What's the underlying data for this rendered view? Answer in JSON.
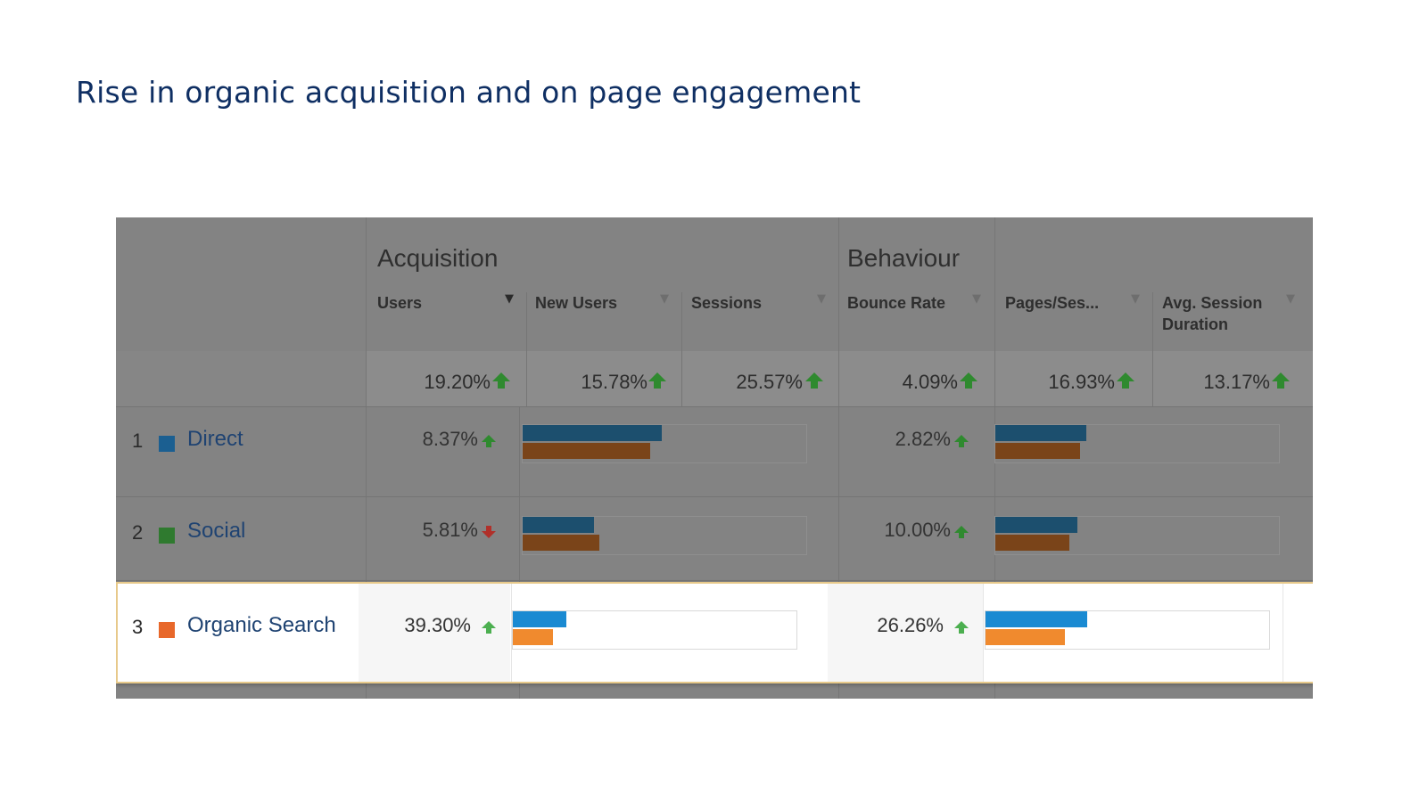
{
  "title": "Rise in organic acquisition and on page engagement",
  "groups": {
    "acquisition": "Acquisition",
    "behaviour": "Behaviour"
  },
  "columns": {
    "users": "Users",
    "new_users": "New Users",
    "sessions": "Sessions",
    "bounce_rate": "Bounce Rate",
    "pages_session": "Pages/Ses...",
    "avg_duration_1": "Avg. Session",
    "avg_duration_2": "Duration"
  },
  "totals": {
    "users": "19.20%",
    "new_users": "15.78%",
    "sessions": "25.57%",
    "bounce_rate": "4.09%",
    "pages_session": "16.93%",
    "avg_duration": "13.17%"
  },
  "rows": [
    {
      "num": "1",
      "label": "Direct",
      "swatch": "#1b5f91",
      "users_change": "8.37%",
      "users_dir": "up",
      "bounce_change": "2.82%",
      "bounce_dir": "up",
      "users_bar_current": 0.49,
      "users_bar_previous": 0.45,
      "bounce_bar_current": 0.32,
      "bounce_bar_previous": 0.3
    },
    {
      "num": "2",
      "label": "Social",
      "swatch": "#2f7a2f",
      "users_change": "5.81%",
      "users_dir": "down",
      "bounce_change": "10.00%",
      "bounce_dir": "up",
      "users_bar_current": 0.25,
      "users_bar_previous": 0.27,
      "bounce_bar_current": 0.29,
      "bounce_bar_previous": 0.26
    },
    {
      "num": "3",
      "label": "Organic Search",
      "swatch": "#e8682a",
      "users_change": "39.30%",
      "users_dir": "up",
      "bounce_change": "26.26%",
      "bounce_dir": "up",
      "users_bar_current": 0.19,
      "users_bar_previous": 0.14,
      "bounce_bar_current": 0.36,
      "bounce_bar_previous": 0.28
    }
  ],
  "colors": {
    "title": "#0f2f63",
    "bar_current_dim": "#1c4f6e",
    "bar_previous_dim": "#7a4419",
    "bar_current": "#1a8ad2",
    "bar_previous": "#f08a2e",
    "up": "#2f8a2f",
    "down": "#b0302a"
  }
}
